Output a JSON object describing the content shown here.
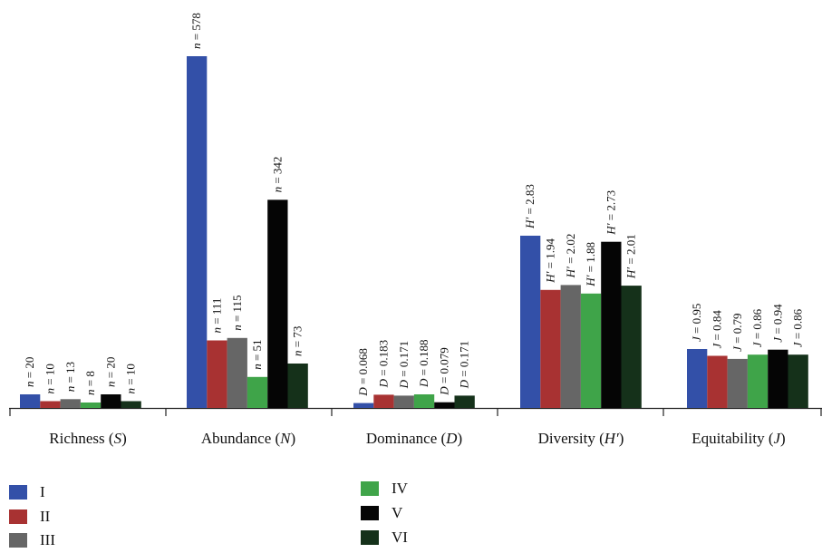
{
  "chart_data": {
    "type": "bar",
    "categories": [
      "Richness (S)",
      "Abundance (N)",
      "Dominance (D)",
      "Diversity (H′)",
      "Equitability (J)"
    ],
    "category_labels": [
      {
        "pre": "Richness (",
        "sym": "S",
        "post": ")"
      },
      {
        "pre": "Abundance (",
        "sym": "N",
        "post": ")"
      },
      {
        "pre": "Dominance (",
        "sym": "D",
        "post": ")"
      },
      {
        "pre": "Diversity (",
        "sym": "H′",
        "post": ")"
      },
      {
        "pre": "Equitability (",
        "sym": "J",
        "post": ")"
      }
    ],
    "series": [
      {
        "name": "I",
        "color": "#3350a8",
        "values": [
          20,
          578,
          0.068,
          2.83,
          0.95
        ]
      },
      {
        "name": "II",
        "color": "#a83232",
        "values": [
          10,
          111,
          0.183,
          1.94,
          0.84
        ]
      },
      {
        "name": "III",
        "color": "#666666",
        "values": [
          13,
          115,
          0.171,
          2.02,
          0.79
        ]
      },
      {
        "name": "IV",
        "color": "#3fa449",
        "values": [
          8,
          51,
          0.188,
          1.88,
          0.86
        ]
      },
      {
        "name": "V",
        "color": "#050505",
        "values": [
          20,
          342,
          0.079,
          2.73,
          0.94
        ]
      },
      {
        "name": "VI",
        "color": "#15311a",
        "values": [
          10,
          73,
          0.171,
          2.01,
          0.86
        ]
      }
    ],
    "data_labels": [
      {
        "sym": "n",
        "texts": [
          "20",
          "10",
          "13",
          "8",
          "20",
          "10"
        ]
      },
      {
        "sym": "n",
        "texts": [
          "578",
          "111",
          "115",
          "51",
          "342",
          "73"
        ]
      },
      {
        "sym": "D",
        "texts": [
          "0.068",
          "0.183",
          "0.171",
          "0.188",
          "0.079",
          "0.171"
        ]
      },
      {
        "sym": "H′",
        "texts": [
          "2.83",
          "1.94",
          "2.02",
          "1.88",
          "2.73",
          "2.01"
        ]
      },
      {
        "sym": "J",
        "texts": [
          "0.95",
          "0.84",
          "0.79",
          "0.86",
          "0.94",
          "0.86"
        ]
      }
    ],
    "legend_position": "bottom-left",
    "grid": false
  }
}
